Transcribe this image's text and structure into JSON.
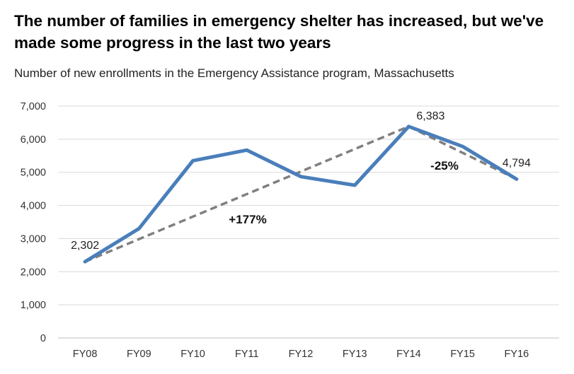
{
  "chart_data": {
    "type": "line",
    "title": "The number of families in emergency shelter has increased, but we've made some progress in the last two years",
    "subtitle": "Number of new enrollments in the Emergency Assistance program, Massachusetts",
    "xlabel": "",
    "ylabel": "",
    "categories": [
      "FY08",
      "FY09",
      "FY10",
      "FY11",
      "FY12",
      "FY13",
      "FY14",
      "FY15",
      "FY16"
    ],
    "series": [
      {
        "values": [
          2302,
          3300,
          5350,
          5670,
          4870,
          4610,
          6383,
          5780,
          4794
        ],
        "color": "#4a7ebb"
      }
    ],
    "ylim": [
      0,
      7000
    ],
    "yticks": [
      0,
      1000,
      2000,
      3000,
      4000,
      5000,
      6000,
      7000
    ],
    "ytick_labels": [
      "0",
      "1,000",
      "2,000",
      "3,000",
      "4,000",
      "5,000",
      "6,000",
      "7,000"
    ],
    "grid": true,
    "data_labels": [
      {
        "category": "FY08",
        "text": "2,302"
      },
      {
        "category": "FY14",
        "text": "6,383"
      },
      {
        "category": "FY16",
        "text": "4,794"
      }
    ],
    "trendlines": [
      {
        "from": "FY08",
        "to": "FY14",
        "label": "+177%",
        "color": "#808080"
      },
      {
        "from": "FY14",
        "to": "FY16",
        "label": "-25%",
        "color": "#808080"
      }
    ]
  }
}
